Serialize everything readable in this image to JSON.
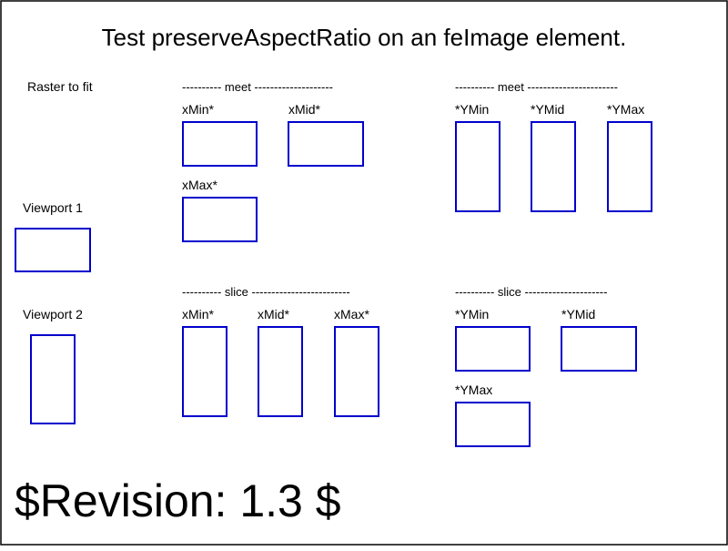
{
  "title": "Test preserveAspectRatio on an feImage element.",
  "revision": "$Revision: 1.3 $",
  "raster_label": "Raster to fit",
  "viewport1_label": "Viewport 1",
  "viewport2_label": "Viewport 2",
  "sections": {
    "meet_x": {
      "header": "---------- meet --------------------",
      "labels": {
        "xmin": "xMin*",
        "xmid": "xMid*",
        "xmax": "xMax*"
      }
    },
    "meet_y": {
      "header": "---------- meet -----------------------",
      "labels": {
        "ymin": "*YMin",
        "ymid": "*YMid",
        "ymax": "*YMax"
      }
    },
    "slice_x": {
      "header": "---------- slice -------------------------",
      "labels": {
        "xmin": "xMin*",
        "xmid": "xMid*",
        "xmax": "xMax*"
      }
    },
    "slice_y": {
      "header": "---------- slice ---------------------",
      "labels": {
        "ymin": "*YMin",
        "ymid": "*YMid",
        "ymax": "*YMax"
      }
    }
  },
  "colors": {
    "viewport_stroke": "#0000cc",
    "text": "#000000",
    "background": "#ffffff"
  }
}
